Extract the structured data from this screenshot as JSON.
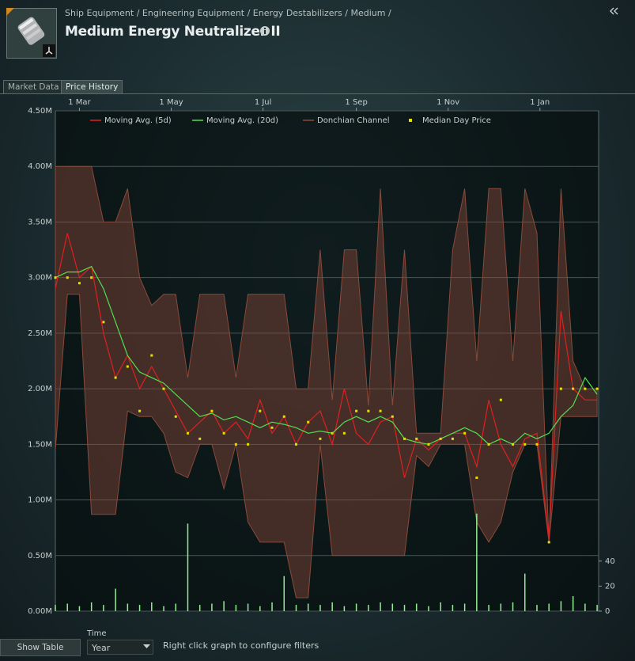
{
  "header": {
    "breadcrumb": "Ship Equipment / Engineering Equipment / Energy Destabilizers / Medium /",
    "title": "Medium Energy Neutralizer II"
  },
  "tabs": [
    "Market Data",
    "Price History"
  ],
  "chart_data": {
    "type": "line",
    "x": [
      0,
      8,
      16,
      24,
      32,
      40,
      48,
      56,
      64,
      72,
      80,
      88,
      96,
      104,
      112,
      120,
      128,
      136,
      144,
      152,
      160,
      168,
      176,
      184,
      192,
      200,
      208,
      216,
      224,
      232,
      240,
      248,
      256,
      264,
      272,
      280,
      288,
      296,
      304,
      312,
      320,
      328,
      336,
      344,
      352,
      360
    ],
    "xlim": [
      0,
      361
    ],
    "xticks": [
      {
        "value": 16,
        "label": "1 Mar"
      },
      {
        "value": 77,
        "label": "1 May"
      },
      {
        "value": 138,
        "label": "1 Jul"
      },
      {
        "value": 200,
        "label": "1 Sep"
      },
      {
        "value": 261,
        "label": "1 Nov"
      },
      {
        "value": 322,
        "label": "1 Jan"
      }
    ],
    "ylim": [
      0,
      4.5
    ],
    "yticks": [
      {
        "value": 0,
        "label": "0.00M"
      },
      {
        "value": 0.5,
        "label": "0.50M"
      },
      {
        "value": 1,
        "label": "1.00M"
      },
      {
        "value": 1.5,
        "label": "1.50M"
      },
      {
        "value": 2,
        "label": "2.00M"
      },
      {
        "value": 2.5,
        "label": "2.50M"
      },
      {
        "value": 3,
        "label": "3.00M"
      },
      {
        "value": 3.5,
        "label": "3.50M"
      },
      {
        "value": 4,
        "label": "4.00M"
      },
      {
        "value": 4.5,
        "label": "4.50M"
      }
    ],
    "y2lim": [
      0,
      400
    ],
    "y2ticks": [
      0,
      20,
      40
    ],
    "grid": true,
    "series": [
      {
        "name": "Moving Avg. (5d)",
        "kind": "line",
        "color": "#e02020",
        "values": [
          2.9,
          3.4,
          3.0,
          3.1,
          2.5,
          2.1,
          2.3,
          2.0,
          2.2,
          2.0,
          1.8,
          1.6,
          1.7,
          1.8,
          1.6,
          1.7,
          1.55,
          1.9,
          1.6,
          1.75,
          1.5,
          1.7,
          1.8,
          1.5,
          2.0,
          1.6,
          1.5,
          1.7,
          1.75,
          1.2,
          1.55,
          1.45,
          1.55,
          1.6,
          1.6,
          1.3,
          1.9,
          1.5,
          1.3,
          1.55,
          1.6,
          0.65,
          2.7,
          2.0,
          1.9,
          1.9
        ]
      },
      {
        "name": "Moving Avg. (20d)",
        "kind": "line",
        "color": "#50e050",
        "values": [
          3.0,
          3.05,
          3.05,
          3.1,
          2.9,
          2.6,
          2.3,
          2.15,
          2.1,
          2.05,
          1.95,
          1.85,
          1.75,
          1.78,
          1.72,
          1.75,
          1.7,
          1.65,
          1.7,
          1.68,
          1.65,
          1.6,
          1.62,
          1.6,
          1.7,
          1.75,
          1.7,
          1.75,
          1.7,
          1.55,
          1.52,
          1.5,
          1.55,
          1.6,
          1.65,
          1.6,
          1.5,
          1.55,
          1.5,
          1.6,
          1.55,
          1.6,
          1.75,
          1.85,
          2.1,
          1.95
        ]
      },
      {
        "name": "Donchian Channel",
        "kind": "band",
        "color": "#8a4a3a",
        "values": [
          4.0,
          4.0,
          4.0,
          4.0,
          3.5,
          3.5,
          3.8,
          3.0,
          2.75,
          2.85,
          2.85,
          2.1,
          2.85,
          2.85,
          2.85,
          2.1,
          2.85,
          2.85,
          2.85,
          2.85,
          2.0,
          2.0,
          3.25,
          1.9,
          3.25,
          3.25,
          1.85,
          3.8,
          1.85,
          3.25,
          1.6,
          1.6,
          1.6,
          3.25,
          3.8,
          2.25,
          3.8,
          3.8,
          2.25,
          3.8,
          3.4,
          0.62,
          3.8,
          2.25,
          2.0,
          2.0
        ],
        "lower": [
          1.45,
          2.85,
          2.85,
          0.87,
          0.87,
          0.87,
          1.8,
          1.75,
          1.75,
          1.6,
          1.25,
          1.2,
          1.5,
          1.5,
          1.1,
          1.5,
          0.8,
          0.62,
          0.62,
          0.62,
          0.12,
          0.12,
          1.5,
          0.5,
          0.5,
          0.5,
          0.5,
          0.5,
          0.5,
          0.5,
          1.4,
          1.3,
          1.5,
          1.5,
          1.5,
          0.8,
          0.62,
          0.8,
          1.25,
          1.5,
          1.5,
          0.62,
          1.75,
          1.75,
          1.75,
          1.75
        ]
      },
      {
        "name": "Median Day Price",
        "kind": "scatter",
        "color": "#e8e000",
        "values": [
          3.0,
          3.0,
          2.95,
          3.0,
          2.6,
          2.1,
          2.2,
          1.8,
          2.3,
          2.0,
          1.75,
          1.6,
          1.55,
          1.8,
          1.6,
          1.5,
          1.5,
          1.8,
          1.65,
          1.75,
          1.5,
          1.7,
          1.55,
          1.6,
          1.6,
          1.8,
          1.8,
          1.8,
          1.75,
          1.55,
          1.55,
          1.5,
          1.55,
          1.55,
          1.6,
          1.2,
          1.5,
          1.9,
          1.5,
          1.5,
          1.5,
          0.62,
          2.0,
          2.0,
          2.0,
          2.0
        ]
      },
      {
        "kind": "bar",
        "axis": "y2",
        "color": "#90f090",
        "values": [
          5,
          6,
          4,
          7,
          5,
          18,
          6,
          5,
          7,
          4,
          6,
          70,
          5,
          6,
          8,
          5,
          6,
          4,
          7,
          28,
          5,
          6,
          5,
          7,
          4,
          6,
          5,
          7,
          6,
          5,
          6,
          4,
          7,
          5,
          6,
          78,
          5,
          6,
          7,
          30,
          5,
          6,
          8,
          12,
          6,
          5
        ]
      }
    ]
  },
  "footer": {
    "button": "Show Table",
    "time_label": "Time",
    "time_value": "Year",
    "hint": "Right click graph to configure filters"
  }
}
